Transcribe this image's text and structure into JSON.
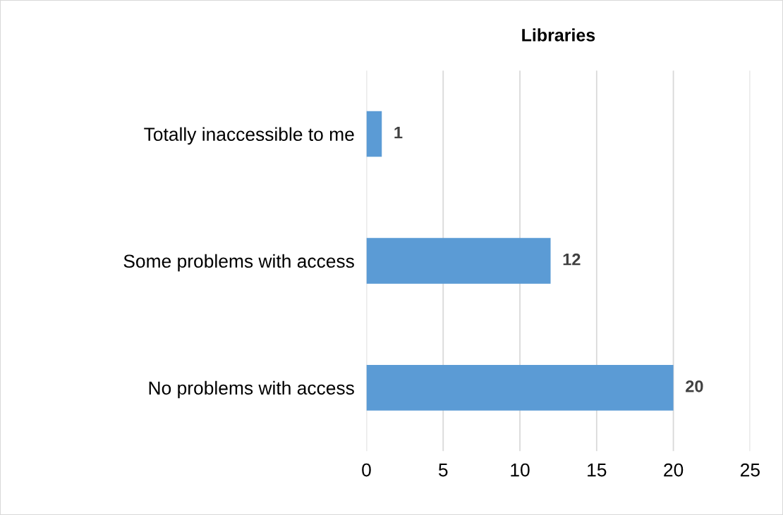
{
  "chart_data": {
    "type": "bar",
    "orientation": "horizontal",
    "title": "Libraries",
    "categories": [
      "Totally inaccessible to me",
      "Some problems with access",
      "No problems with access"
    ],
    "values": [
      1,
      12,
      20
    ],
    "color": "#5b9bd5",
    "xlim": [
      0,
      25
    ],
    "xticks": [
      0,
      5,
      10,
      15,
      20,
      25
    ],
    "grid": "x",
    "data_labels": true
  }
}
